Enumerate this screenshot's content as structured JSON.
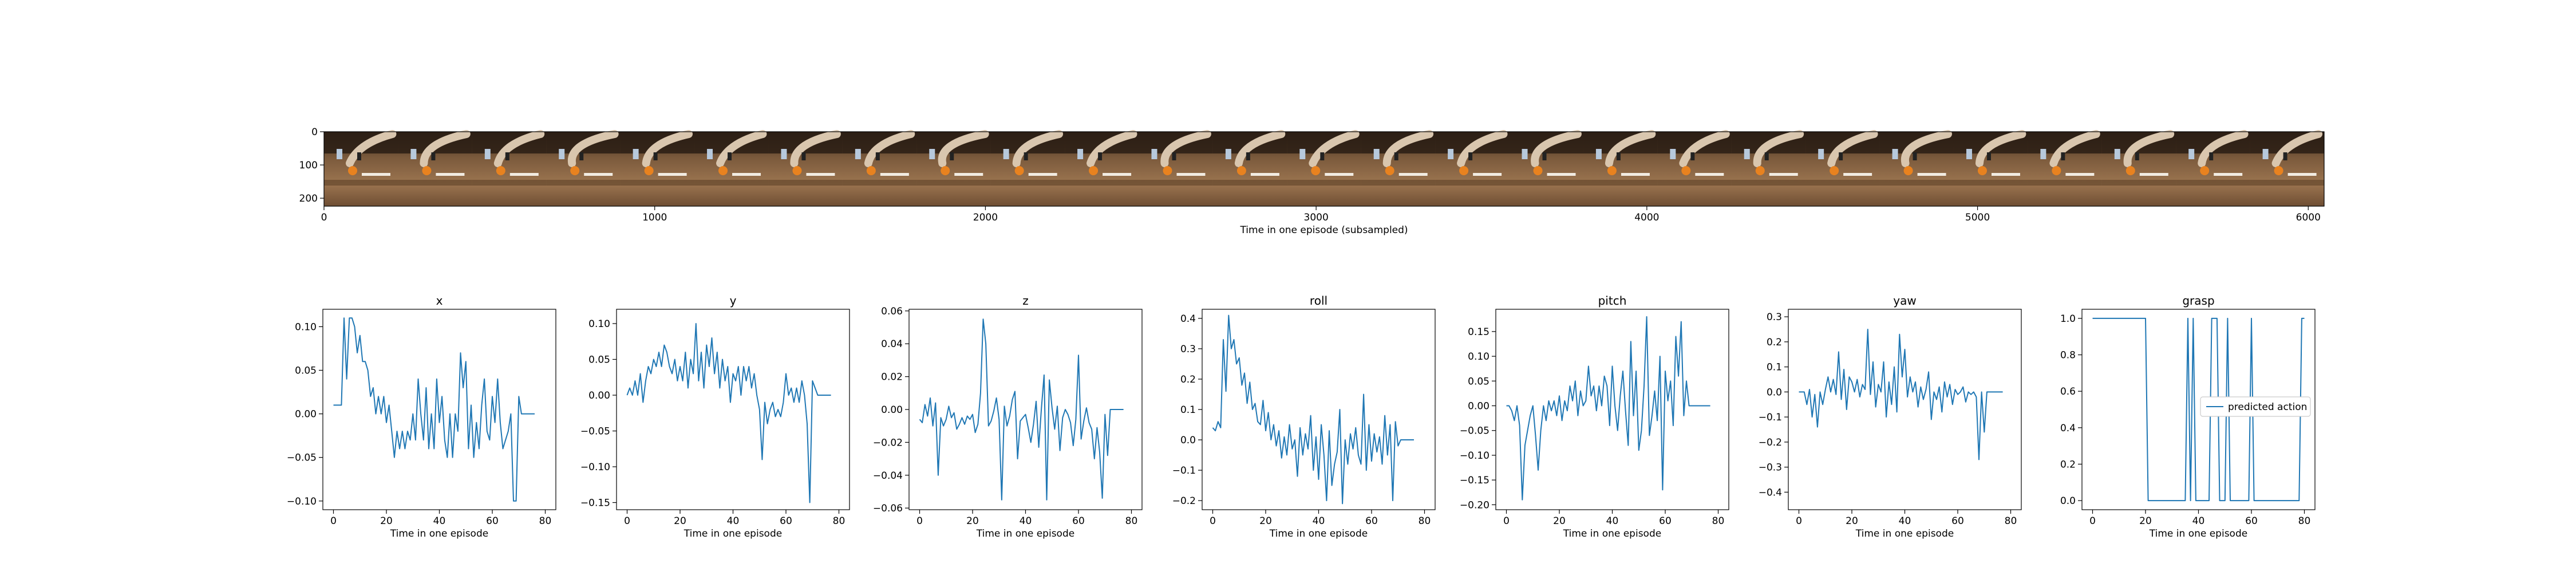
{
  "chart_data": [
    {
      "type": "image-strip",
      "xlabel": "Time in one episode (subsampled)",
      "xticks": [
        0,
        1000,
        2000,
        3000,
        4000,
        5000,
        6000
      ],
      "yticks": [
        0,
        100,
        200
      ],
      "xlim": [
        0,
        6048
      ],
      "ylim": [
        224,
        0
      ],
      "frames": 27
    },
    {
      "type": "line",
      "title": "x",
      "xlabel": "Time in one episode",
      "xlim": [
        -4,
        84
      ],
      "xticks": [
        0,
        20,
        40,
        60,
        80
      ],
      "ylim": [
        -0.11,
        0.12
      ],
      "yticks": [
        -0.1,
        -0.05,
        0.0,
        0.05,
        0.1
      ],
      "ytick_labels": [
        "−0.10",
        "−0.05",
        "0.00",
        "0.05",
        "0.10"
      ],
      "series": [
        {
          "values": [
            0.01,
            0.01,
            0.01,
            0.01,
            0.11,
            0.04,
            0.11,
            0.11,
            0.1,
            0.07,
            0.09,
            0.06,
            0.06,
            0.05,
            0.02,
            0.03,
            0.0,
            0.02,
            0.0,
            0.02,
            -0.01,
            0.01,
            -0.02,
            -0.05,
            -0.02,
            -0.04,
            -0.02,
            -0.04,
            -0.02,
            -0.03,
            0.0,
            -0.03,
            0.04,
            0.0,
            -0.03,
            0.03,
            -0.04,
            0.0,
            -0.04,
            0.04,
            -0.01,
            0.02,
            -0.03,
            -0.05,
            0.0,
            -0.05,
            0.0,
            -0.02,
            0.07,
            0.03,
            0.06,
            -0.04,
            0.01,
            -0.05,
            -0.01,
            -0.04,
            0.01,
            0.04,
            -0.02,
            -0.03,
            0.02,
            -0.01,
            0.04,
            -0.01,
            -0.04,
            -0.03,
            -0.02,
            0.0,
            -0.1,
            -0.1,
            0.02,
            0.0,
            0.0,
            0.0,
            0.0,
            0.0,
            0.0
          ]
        }
      ]
    },
    {
      "type": "line",
      "title": "y",
      "xlabel": "Time in one episode",
      "xlim": [
        -4,
        84
      ],
      "xticks": [
        0,
        20,
        40,
        60,
        80
      ],
      "ylim": [
        -0.16,
        0.12
      ],
      "yticks": [
        -0.15,
        -0.1,
        -0.05,
        0.0,
        0.05,
        0.1
      ],
      "ytick_labels": [
        "−0.15",
        "−0.10",
        "−0.05",
        "0.00",
        "0.05",
        "0.10"
      ],
      "series": [
        {
          "values": [
            0.0,
            0.01,
            0.0,
            0.02,
            0.0,
            0.03,
            -0.01,
            0.02,
            0.04,
            0.03,
            0.05,
            0.04,
            0.06,
            0.04,
            0.07,
            0.06,
            0.04,
            0.03,
            0.05,
            0.02,
            0.04,
            0.02,
            0.06,
            0.01,
            0.05,
            0.03,
            0.1,
            0.02,
            0.06,
            0.01,
            0.07,
            0.04,
            0.08,
            0.03,
            0.06,
            0.01,
            0.05,
            0.02,
            0.04,
            -0.01,
            0.03,
            0.02,
            0.04,
            0.0,
            0.04,
            0.02,
            0.04,
            0.01,
            0.03,
            0.0,
            -0.02,
            -0.09,
            -0.01,
            -0.04,
            -0.02,
            -0.01,
            -0.03,
            -0.02,
            -0.03,
            -0.01,
            0.03,
            0.0,
            0.01,
            -0.01,
            0.01,
            -0.01,
            0.02,
            0.0,
            -0.04,
            -0.15,
            0.02,
            0.01,
            0.0,
            0.0,
            0.0,
            0.0,
            0.0,
            0.0
          ]
        }
      ]
    },
    {
      "type": "line",
      "title": "z",
      "xlabel": "Time in one episode",
      "xlim": [
        -4,
        84
      ],
      "xticks": [
        0,
        20,
        40,
        60,
        80
      ],
      "ylim": [
        -0.061,
        0.061
      ],
      "yticks": [
        -0.06,
        -0.04,
        -0.02,
        0.0,
        0.02,
        0.04,
        0.06
      ],
      "ytick_labels": [
        "−0.06",
        "−0.04",
        "−0.02",
        "0.00",
        "0.02",
        "0.04",
        "0.06"
      ],
      "series": [
        {
          "values": [
            -0.006,
            -0.008,
            0.003,
            -0.004,
            0.007,
            -0.01,
            0.004,
            -0.04,
            -0.005,
            -0.01,
            -0.006,
            0.002,
            -0.005,
            -0.002,
            -0.012,
            -0.009,
            -0.005,
            -0.009,
            -0.004,
            -0.006,
            -0.003,
            -0.014,
            -0.009,
            0.01,
            0.055,
            0.04,
            -0.01,
            -0.007,
            -0.001,
            0.007,
            -0.006,
            -0.055,
            0.002,
            -0.01,
            -0.004,
            0.006,
            0.011,
            -0.03,
            -0.007,
            -0.005,
            -0.003,
            -0.011,
            -0.02,
            -0.009,
            0.005,
            -0.023,
            0.001,
            0.021,
            -0.055,
            0.018,
            0.001,
            -0.012,
            0.002,
            -0.025,
            -0.005,
            0.0,
            -0.003,
            -0.008,
            -0.022,
            -0.006,
            0.033,
            -0.018,
            -0.007,
            0.001,
            -0.008,
            -0.012,
            -0.03,
            -0.011,
            -0.026,
            -0.054,
            -0.003,
            -0.028,
            0.0,
            0.0,
            0.0,
            0.0,
            0.0,
            0.0
          ]
        }
      ]
    },
    {
      "type": "line",
      "title": "roll",
      "xlabel": "Time in one episode",
      "xlim": [
        -4,
        84
      ],
      "xticks": [
        0,
        20,
        40,
        60,
        80
      ],
      "ylim": [
        -0.23,
        0.43
      ],
      "yticks": [
        -0.2,
        -0.1,
        0.0,
        0.1,
        0.2,
        0.3,
        0.4
      ],
      "ytick_labels": [
        "−0.2",
        "−0.1",
        "0.0",
        "0.1",
        "0.2",
        "0.3",
        "0.4"
      ],
      "series": [
        {
          "values": [
            0.04,
            0.03,
            0.06,
            0.04,
            0.33,
            0.16,
            0.41,
            0.3,
            0.33,
            0.25,
            0.27,
            0.18,
            0.22,
            0.12,
            0.19,
            0.1,
            0.12,
            0.06,
            0.05,
            0.13,
            0.03,
            0.09,
            0.0,
            0.05,
            -0.02,
            0.03,
            -0.06,
            0.01,
            -0.05,
            0.05,
            -0.03,
            0.0,
            -0.12,
            0.04,
            -0.05,
            0.02,
            -0.03,
            0.08,
            -0.1,
            0.01,
            -0.13,
            0.05,
            -0.05,
            -0.2,
            0.03,
            -0.15,
            -0.08,
            -0.04,
            0.1,
            -0.21,
            0.0,
            -0.08,
            0.02,
            -0.03,
            0.04,
            -0.05,
            -0.08,
            0.15,
            -0.1,
            0.05,
            -0.07,
            0.02,
            -0.04,
            0.01,
            -0.08,
            0.08,
            -0.05,
            0.05,
            -0.2,
            0.06,
            -0.02,
            0.0,
            0.0,
            0.0,
            0.0,
            0.0,
            0.0
          ]
        }
      ]
    },
    {
      "type": "line",
      "title": "pitch",
      "xlabel": "Time in one episode",
      "xlim": [
        -4,
        84
      ],
      "xticks": [
        0,
        20,
        40,
        60,
        80
      ],
      "ylim": [
        -0.21,
        0.195
      ],
      "yticks": [
        -0.2,
        -0.15,
        -0.1,
        -0.05,
        0.0,
        0.05,
        0.1,
        0.15
      ],
      "ytick_labels": [
        "−0.20",
        "−0.15",
        "−0.10",
        "−0.05",
        "0.00",
        "0.05",
        "0.10",
        "0.15"
      ],
      "series": [
        {
          "values": [
            0.0,
            0.0,
            -0.01,
            -0.03,
            0.0,
            -0.04,
            -0.19,
            -0.08,
            -0.05,
            -0.02,
            0.0,
            -0.06,
            -0.13,
            -0.05,
            0.0,
            -0.03,
            0.01,
            -0.01,
            0.01,
            -0.02,
            0.02,
            -0.03,
            0.01,
            -0.01,
            0.04,
            0.01,
            0.05,
            -0.02,
            0.03,
            0.0,
            0.01,
            0.08,
            0.02,
            0.04,
            -0.01,
            0.04,
            0.0,
            0.06,
            0.04,
            -0.04,
            0.08,
            0.0,
            -0.05,
            0.02,
            0.07,
            -0.01,
            -0.08,
            0.13,
            -0.02,
            0.07,
            -0.09,
            -0.05,
            0.04,
            0.18,
            -0.06,
            -0.02,
            0.03,
            -0.03,
            0.1,
            -0.17,
            0.07,
            0.01,
            0.05,
            -0.04,
            0.14,
            0.06,
            0.17,
            -0.02,
            0.05,
            0.0,
            0.0,
            0.0,
            0.0,
            0.0,
            0.0,
            0.0,
            0.0,
            0.0
          ]
        }
      ]
    },
    {
      "type": "line",
      "title": "yaw",
      "xlabel": "Time in one episode",
      "xlim": [
        -4,
        84
      ],
      "xticks": [
        0,
        20,
        40,
        60,
        80
      ],
      "ylim": [
        -0.47,
        0.33
      ],
      "yticks": [
        -0.4,
        -0.3,
        -0.2,
        -0.1,
        0.0,
        0.1,
        0.2,
        0.3
      ],
      "ytick_labels": [
        "−0.4",
        "−0.3",
        "−0.2",
        "−0.1",
        "0.0",
        "0.1",
        "0.2",
        "0.3"
      ],
      "series": [
        {
          "values": [
            0.0,
            0.0,
            0.0,
            -0.05,
            0.01,
            -0.1,
            -0.01,
            -0.14,
            0.0,
            -0.05,
            0.01,
            0.06,
            0.0,
            0.05,
            -0.01,
            0.16,
            -0.03,
            0.09,
            -0.07,
            0.06,
            0.04,
            0.0,
            0.05,
            -0.02,
            0.03,
            0.01,
            0.25,
            -0.01,
            0.12,
            -0.06,
            0.03,
            0.0,
            0.12,
            -0.1,
            0.04,
            -0.05,
            0.1,
            -0.08,
            0.23,
            0.06,
            0.17,
            -0.02,
            0.06,
            0.0,
            0.04,
            -0.06,
            0.02,
            -0.03,
            0.01,
            0.08,
            -0.11,
            0.0,
            -0.03,
            0.02,
            -0.08,
            0.04,
            -0.02,
            0.03,
            -0.05,
            0.01,
            -0.01,
            0.0,
            0.02,
            -0.04,
            0.0,
            -0.01,
            0.0,
            -0.02,
            -0.27,
            0.0,
            -0.16,
            0.0,
            0.0,
            0.0,
            0.0,
            0.0,
            0.0,
            0.0
          ]
        }
      ]
    },
    {
      "type": "line",
      "title": "grasp",
      "xlabel": "Time in one episode",
      "xlim": [
        -4,
        84
      ],
      "xticks": [
        0,
        20,
        40,
        60,
        80
      ],
      "ylim": [
        -0.05,
        1.05
      ],
      "yticks": [
        0.0,
        0.2,
        0.4,
        0.6,
        0.8,
        1.0
      ],
      "ytick_labels": [
        "0.0",
        "0.2",
        "0.4",
        "0.6",
        "0.8",
        "1.0"
      ],
      "legend": "predicted action",
      "series": [
        {
          "name": "predicted action",
          "values": [
            1,
            1,
            1,
            1,
            1,
            1,
            1,
            1,
            1,
            1,
            1,
            1,
            1,
            1,
            1,
            1,
            1,
            1,
            1,
            1,
            1,
            0,
            0,
            0,
            0,
            0,
            0,
            0,
            0,
            0,
            0,
            0,
            0,
            0,
            0,
            0,
            1,
            0,
            1,
            0,
            0,
            0,
            0,
            0,
            0,
            1,
            1,
            1,
            0,
            0,
            0,
            1,
            0,
            0,
            0,
            0,
            0,
            0,
            0,
            0,
            1,
            0,
            0,
            0,
            0,
            0,
            0,
            0,
            0,
            0,
            0,
            0,
            0,
            0,
            0,
            0,
            0,
            0,
            0,
            1,
            1
          ]
        }
      ]
    }
  ],
  "colors": {
    "line": "#1f77b4",
    "axis": "#000000",
    "background": "#ffffff",
    "legend_border": "#cccccc"
  }
}
